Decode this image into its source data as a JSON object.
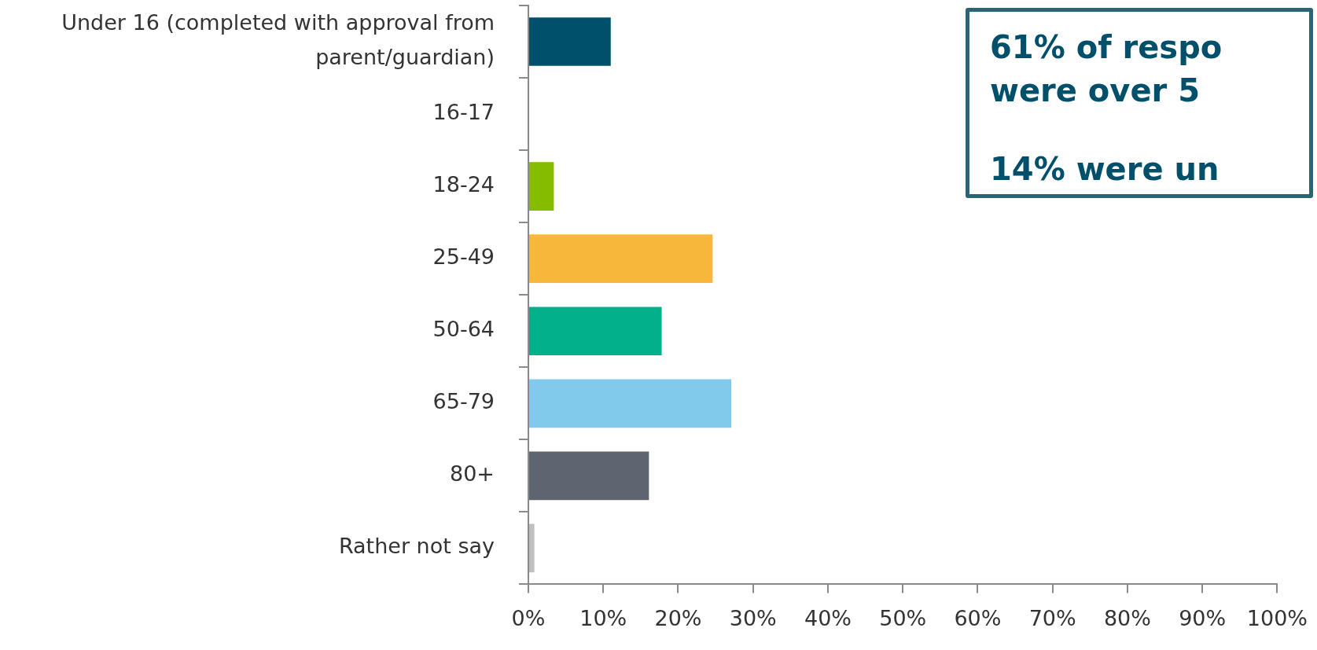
{
  "chart_data": {
    "type": "bar",
    "orientation": "horizontal",
    "categories": [
      "Under 16 (completed with approval from parent/guardian)",
      "16-17",
      "18-24",
      "25-49",
      "50-64",
      "65-79",
      "80+",
      "Rather not say"
    ],
    "values": [
      11.0,
      0,
      3.4,
      24.6,
      17.8,
      27.1,
      16.1,
      0.8
    ],
    "colors": [
      "#00506b",
      null,
      "#86bc00",
      "#f7b73a",
      "#02b18c",
      "#82caeb",
      "#5d6670",
      "#bfbfbf"
    ],
    "xlim": [
      0,
      100
    ],
    "xticks": [
      {
        "value": 0,
        "label": "0%"
      },
      {
        "value": 10,
        "label": "10%"
      },
      {
        "value": 20,
        "label": "20%"
      },
      {
        "value": 30,
        "label": "30%"
      },
      {
        "value": 40,
        "label": "40%"
      },
      {
        "value": 50,
        "label": "50%"
      },
      {
        "value": 60,
        "label": "60%"
      },
      {
        "value": 70,
        "label": "70%"
      },
      {
        "value": 80,
        "label": "80%"
      },
      {
        "value": 90,
        "label": "90%"
      },
      {
        "value": 100,
        "label": "100%"
      }
    ],
    "grid": false,
    "legend": false,
    "annotations": [
      "61% of respo were over 5",
      "14% were un"
    ]
  }
}
